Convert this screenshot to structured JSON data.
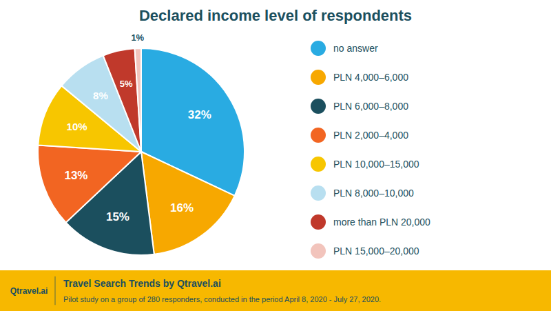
{
  "chart_data": {
    "type": "pie",
    "title": "Declared income level of respondents",
    "categories": [
      "no answer",
      "PLN 4,000–6,000",
      "PLN 6,000–8,000",
      "PLN 2,000–4,000",
      "PLN 10,000–15,000",
      "PLN 8,000–10,000",
      "more than PLN 20,000",
      "PLN 15,000–20,000"
    ],
    "values": [
      32,
      16,
      15,
      13,
      10,
      8,
      5,
      1
    ],
    "value_labels": [
      "32%",
      "16%",
      "15%",
      "13%",
      "10%",
      "8%",
      "5%",
      "1%"
    ],
    "colors": [
      "#29ABE2",
      "#F7A800",
      "#1B4F5E",
      "#F26522",
      "#F7C600",
      "#B8DFF0",
      "#C0392B",
      "#F2C4BC"
    ],
    "data_labels": true,
    "legend": "right",
    "annotations": [
      "Qtravel.ai",
      "Travel Search Trends by Qtravel.ai",
      "Pilot study on a group of 280 responders, conducted in the period April 8, 2020 - July 27, 2020."
    ]
  }
}
